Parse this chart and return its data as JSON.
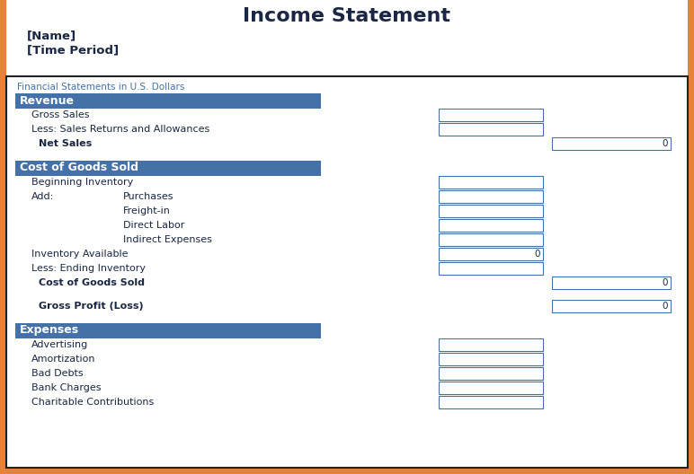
{
  "title": "Income Statement",
  "title_fontsize": 16,
  "title_color": "#1a2744",
  "name_label": "[Name]",
  "time_label": "[Time Period]",
  "bg_outer": "#E8813A",
  "bg_inner": "#FFFFFF",
  "border_color": "#222222",
  "header_bg": "#4472A8",
  "header_text_color": "#FFFFFF",
  "header_fontsize": 9,
  "body_text_color": "#1a2744",
  "body_fontsize": 8,
  "subtitle_text": "Financial Statements in U.S. Dollars",
  "subtitle_color": "#4472A8",
  "box_border_color": "#4472A8",
  "sections": [
    {
      "type": "header",
      "text": "Revenue"
    },
    {
      "type": "row",
      "indent": 1,
      "text": "Gross Sales",
      "col1_box": true,
      "col2_box": false,
      "value": null
    },
    {
      "type": "row",
      "indent": 1,
      "text": "Less: Sales Returns and Allowances",
      "col1_box": true,
      "col2_box": false,
      "value": null
    },
    {
      "type": "row",
      "indent": 2,
      "text": "Net Sales",
      "bold": true,
      "col1_box": false,
      "col2_box": true,
      "value": "0"
    },
    {
      "type": "spacer"
    },
    {
      "type": "header",
      "text": "Cost of Goods Sold"
    },
    {
      "type": "row",
      "indent": 1,
      "text": "Beginning Inventory",
      "col1_box": true,
      "col2_box": false,
      "value": null
    },
    {
      "type": "row2col",
      "left_text": "Add:",
      "right_text": "Purchases",
      "col1_box": true,
      "value": null
    },
    {
      "type": "row",
      "indent": 3,
      "text": "Freight-in",
      "col1_box": true,
      "col2_box": false,
      "value": null
    },
    {
      "type": "row",
      "indent": 3,
      "text": "Direct Labor",
      "col1_box": true,
      "col2_box": false,
      "value": null
    },
    {
      "type": "row",
      "indent": 3,
      "text": "Indirect Expenses",
      "col1_box": true,
      "col2_box": false,
      "value": null
    },
    {
      "type": "row",
      "indent": 1,
      "text": "Inventory Available",
      "col1_box": true,
      "col2_box": false,
      "value": "0"
    },
    {
      "type": "row",
      "indent": 1,
      "text": "Less: Ending Inventory",
      "col1_box": true,
      "col2_box": false,
      "value": null
    },
    {
      "type": "row",
      "indent": 2,
      "text": "Cost of Goods Sold",
      "bold": true,
      "col1_box": false,
      "col2_box": true,
      "value": "0"
    },
    {
      "type": "spacer"
    },
    {
      "type": "row",
      "indent": 2,
      "text": "Gross Profit (Loss)",
      "bold": true,
      "col1_box": false,
      "col2_box": true,
      "value": "0"
    },
    {
      "type": "spacer"
    },
    {
      "type": "header",
      "text": "Expenses"
    },
    {
      "type": "row",
      "indent": 1,
      "text": "Advertising",
      "col1_box": true,
      "col2_box": false,
      "value": null
    },
    {
      "type": "row",
      "indent": 1,
      "text": "Amortization",
      "col1_box": true,
      "col2_box": false,
      "value": null
    },
    {
      "type": "row",
      "indent": 1,
      "text": "Bad Debts",
      "col1_box": true,
      "col2_box": false,
      "value": null
    },
    {
      "type": "row",
      "indent": 1,
      "text": "Bank Charges",
      "col1_box": true,
      "col2_box": false,
      "value": null
    },
    {
      "type": "row",
      "indent": 1,
      "text": "Charitable Contributions",
      "col1_box": true,
      "col2_box": false,
      "value": null
    }
  ]
}
